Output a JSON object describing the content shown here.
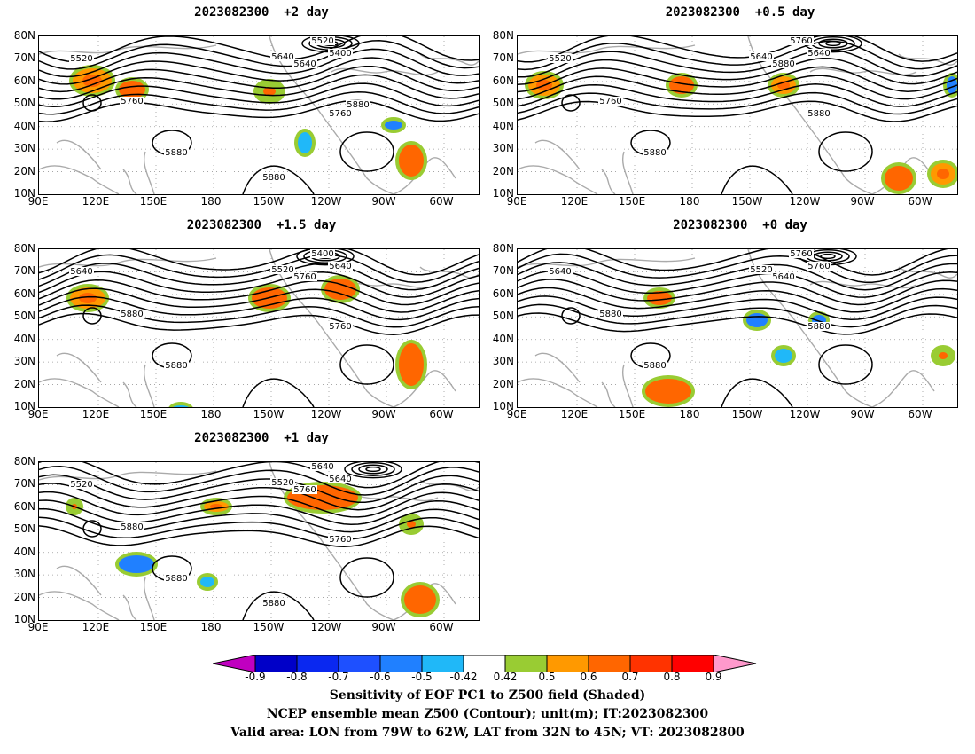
{
  "panels": [
    {
      "id": "p2",
      "title": "2023082300  +2 day",
      "labels": [
        "5520",
        "5640",
        "5400",
        "5520",
        "5640",
        "5760",
        "5760",
        "5880",
        "5880",
        "5880"
      ]
    },
    {
      "id": "p05",
      "title": "2023082300  +0.5 day",
      "labels": [
        "5520",
        "5640",
        "5640",
        "5760",
        "5880",
        "5760",
        "5880",
        "5880"
      ]
    },
    {
      "id": "p15",
      "title": "2023082300  +1.5 day",
      "labels": [
        "5640",
        "5520",
        "5640",
        "5400",
        "5760",
        "5880",
        "5760",
        "5880"
      ]
    },
    {
      "id": "p0",
      "title": "2023082300  +0 day",
      "labels": [
        "5640",
        "5520",
        "5760",
        "5760",
        "5640",
        "5880",
        "5880",
        "5880"
      ]
    },
    {
      "id": "p1",
      "title": "2023082300  +1 day",
      "labels": [
        "5520",
        "5520",
        "5640",
        "5640",
        "5760",
        "5880",
        "5760",
        "5880",
        "5880"
      ]
    }
  ],
  "axes": {
    "lat_labels": [
      "80N",
      "70N",
      "60N",
      "50N",
      "40N",
      "30N",
      "20N",
      "10N"
    ],
    "lon_labels": [
      "90E",
      "120E",
      "150E",
      "180",
      "150W",
      "120W",
      "90W",
      "60W"
    ]
  },
  "colorbar": {
    "labels": [
      "-0.9",
      "-0.8",
      "-0.7",
      "-0.6",
      "-0.5",
      "-0.42",
      "0.42",
      "0.5",
      "0.6",
      "0.7",
      "0.8",
      "0.9"
    ],
    "colors": [
      "#c000c0",
      "#0000c8",
      "#0a28f0",
      "#1e50ff",
      "#2080ff",
      "#20b8f8",
      "#ffffff",
      "#99cc33",
      "#ff9900",
      "#ff6600",
      "#ff3300",
      "#ff0000",
      "#ff99cc"
    ]
  },
  "captions": {
    "line1": "Sensitivity of EOF PC1 to Z500 field (Shaded)",
    "line2": "NCEP ensemble mean Z500 (Contour); unit(m); IT:2023082300",
    "line3": "Valid area: LON from 79W to 62W, LAT from 32N to 45N; VT: 2023082800"
  }
}
